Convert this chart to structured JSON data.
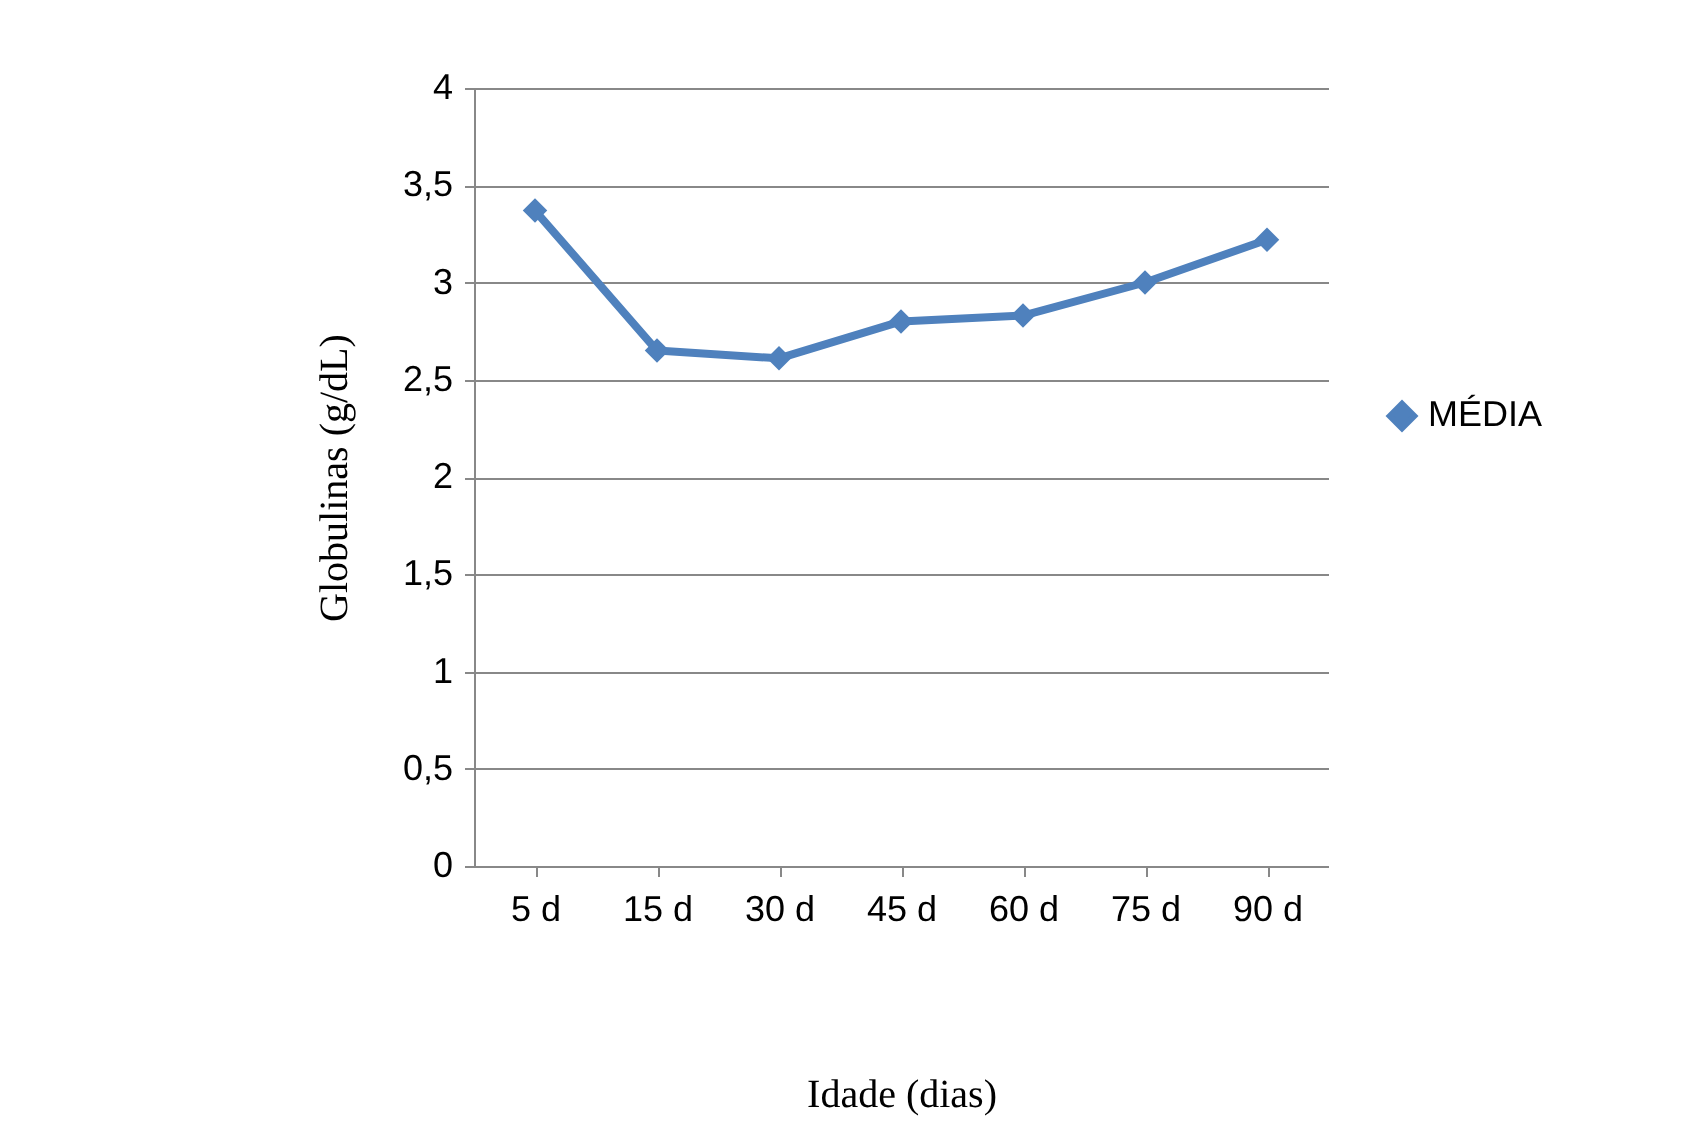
{
  "chart_data": {
    "type": "line",
    "xlabel": "Idade (dias)",
    "ylabel": "Globulinas (g/dL)",
    "categories": [
      "5 d",
      "15 d",
      "30 d",
      "45 d",
      "60 d",
      "75 d",
      "90 d"
    ],
    "series": [
      {
        "name": "MÉDIA",
        "color": "#4f81bd",
        "values": [
          3.37,
          2.65,
          2.61,
          2.8,
          2.83,
          3.0,
          3.22
        ]
      }
    ],
    "ylim": [
      0,
      4
    ],
    "yticks": [
      0,
      {
        "value": 0.5,
        "label": "0,5"
      },
      1,
      {
        "value": 1.5,
        "label": "1,5"
      },
      2,
      {
        "value": 2.5,
        "label": "2,5"
      },
      3,
      {
        "value": 3.5,
        "label": "3,5"
      },
      4
    ],
    "grid": "y",
    "legend": "right",
    "marker": "diamond",
    "line_style": "solid"
  }
}
